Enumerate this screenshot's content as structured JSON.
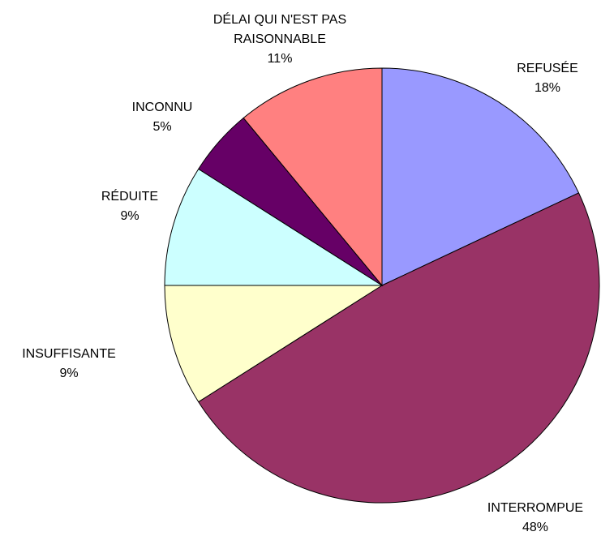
{
  "chart_data": {
    "type": "pie",
    "categories": [
      "REFUSÉE",
      "INTERROMPUE",
      "INSUFFISANTE",
      "RÉDUITE",
      "INCONNU",
      "DÉLAI QUI N'EST PAS RAISONNABLE"
    ],
    "values": [
      18,
      48,
      9,
      9,
      5,
      11
    ],
    "value_labels": [
      "18%",
      "48%",
      "9%",
      "9%",
      "5%",
      "11%"
    ],
    "colors": [
      "#9999ff",
      "#993366",
      "#ffffcc",
      "#ccffff",
      "#660066",
      "#ff8080"
    ]
  }
}
